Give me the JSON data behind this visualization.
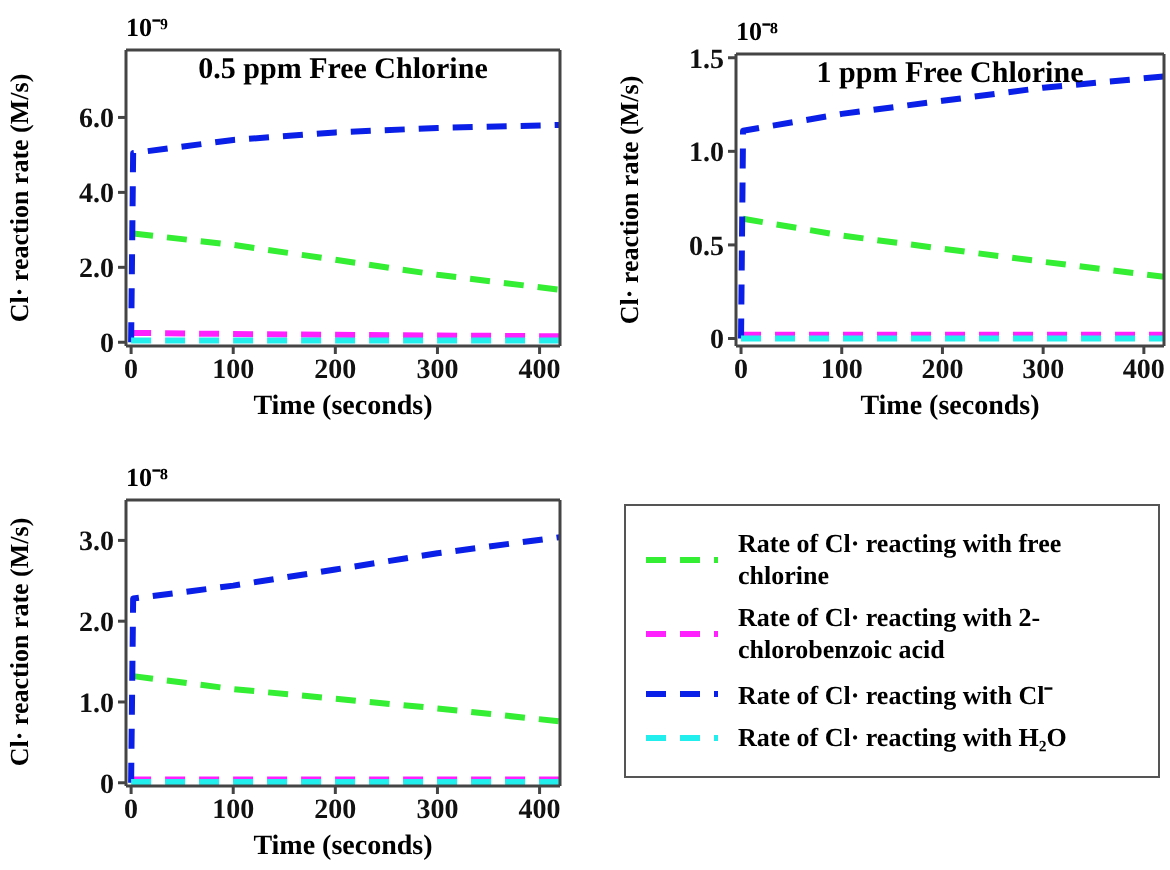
{
  "chart_data": [
    {
      "type": "line",
      "title": "0.5 ppm Free Chlorine",
      "xlabel": "Time (seconds)",
      "ylabel": "Cl· reaction rate (M/s)",
      "annotations": [
        "10⁻⁹"
      ],
      "xlim": [
        -5,
        420
      ],
      "xticks": [
        0,
        100,
        200,
        300,
        400
      ],
      "ylim": [
        -0.1,
        7.8
      ],
      "yticks": [
        0,
        {
          "value": 2,
          "label": "2.0"
        },
        {
          "value": 4,
          "label": "4.0"
        },
        {
          "value": 6,
          "label": "6.0"
        }
      ],
      "legend": false,
      "marker": "none",
      "line_style": "dashed",
      "series": [
        {
          "color": "#33ee33",
          "x": [
            2,
            100,
            200,
            300,
            420
          ],
          "values": [
            2.9,
            2.6,
            2.2,
            1.8,
            1.4
          ]
        },
        {
          "color": "#ff22ff",
          "x": [
            0,
            100,
            200,
            300,
            420
          ],
          "values": [
            0.25,
            0.22,
            0.2,
            0.18,
            0.16
          ]
        },
        {
          "color": "#0a1fe8",
          "x": [
            0,
            2,
            100,
            200,
            300,
            420
          ],
          "values": [
            0,
            5.05,
            5.4,
            5.6,
            5.72,
            5.8
          ]
        },
        {
          "color": "#22eeee",
          "x": [
            0,
            100,
            200,
            300,
            420
          ],
          "values": [
            0.05,
            0.05,
            0.05,
            0.05,
            0.05
          ]
        }
      ]
    },
    {
      "type": "line",
      "title": "1 ppm Free Chlorine",
      "xlabel": "Time (seconds)",
      "ylabel": "Cl· reaction rate (M/s)",
      "annotations": [
        "10⁻⁸"
      ],
      "xlim": [
        -5,
        420
      ],
      "xticks": [
        0,
        100,
        200,
        300,
        400
      ],
      "ylim": [
        -0.04,
        1.52
      ],
      "yticks": [
        0,
        0.5,
        {
          "value": 1,
          "label": "1.0"
        },
        1.5
      ],
      "legend": false,
      "marker": "none",
      "line_style": "dashed",
      "series": [
        {
          "color": "#33ee33",
          "x": [
            2,
            100,
            200,
            300,
            420
          ],
          "values": [
            0.64,
            0.55,
            0.48,
            0.41,
            0.33
          ]
        },
        {
          "color": "#ff22ff",
          "x": [
            0,
            100,
            200,
            300,
            420
          ],
          "values": [
            0.02,
            0.02,
            0.02,
            0.02,
            0.02
          ]
        },
        {
          "color": "#0a1fe8",
          "x": [
            0,
            2,
            100,
            200,
            300,
            420
          ],
          "values": [
            0,
            1.11,
            1.2,
            1.27,
            1.34,
            1.4
          ]
        },
        {
          "color": "#22eeee",
          "x": [
            0,
            100,
            200,
            300,
            420
          ],
          "values": [
            0,
            0,
            0,
            0,
            0
          ]
        }
      ]
    },
    {
      "type": "line",
      "xlabel": "Time (seconds)",
      "ylabel": "Cl· reaction rate (M/s)",
      "annotations": [
        "10⁻⁸"
      ],
      "xlim": [
        -5,
        420
      ],
      "xticks": [
        0,
        100,
        200,
        300,
        400
      ],
      "ylim": [
        -0.04,
        3.5
      ],
      "yticks": [
        0,
        {
          "value": 1,
          "label": "1.0"
        },
        {
          "value": 2,
          "label": "2.0"
        },
        {
          "value": 3,
          "label": "3.0"
        }
      ],
      "legend": "right",
      "marker": "none",
      "line_style": "dashed",
      "series": [
        {
          "name": "Rate of  Cl· reacting with free chlorine",
          "color": "#33ee33",
          "x": [
            2,
            100,
            200,
            300,
            420
          ],
          "values": [
            1.32,
            1.16,
            1.04,
            0.92,
            0.76
          ]
        },
        {
          "name": "Rate of  Cl· reacting with 2-chlorobenzoic acid",
          "color": "#ff22ff",
          "x": [
            0,
            100,
            200,
            300,
            420
          ],
          "values": [
            0.04,
            0.04,
            0.04,
            0.04,
            0.04
          ]
        },
        {
          "name": "Rate of  Cl· reacting with Cl⁻",
          "color": "#0a1fe8",
          "x": [
            0,
            2,
            100,
            200,
            300,
            420
          ],
          "values": [
            0,
            2.28,
            2.44,
            2.64,
            2.84,
            3.04
          ]
        },
        {
          "name": "Rate of  Cl· reacting with H₂O",
          "color": "#22eeee",
          "x": [
            0,
            100,
            200,
            300,
            420
          ],
          "values": [
            0.01,
            0.01,
            0.01,
            0.01,
            0.01
          ]
        }
      ]
    }
  ]
}
